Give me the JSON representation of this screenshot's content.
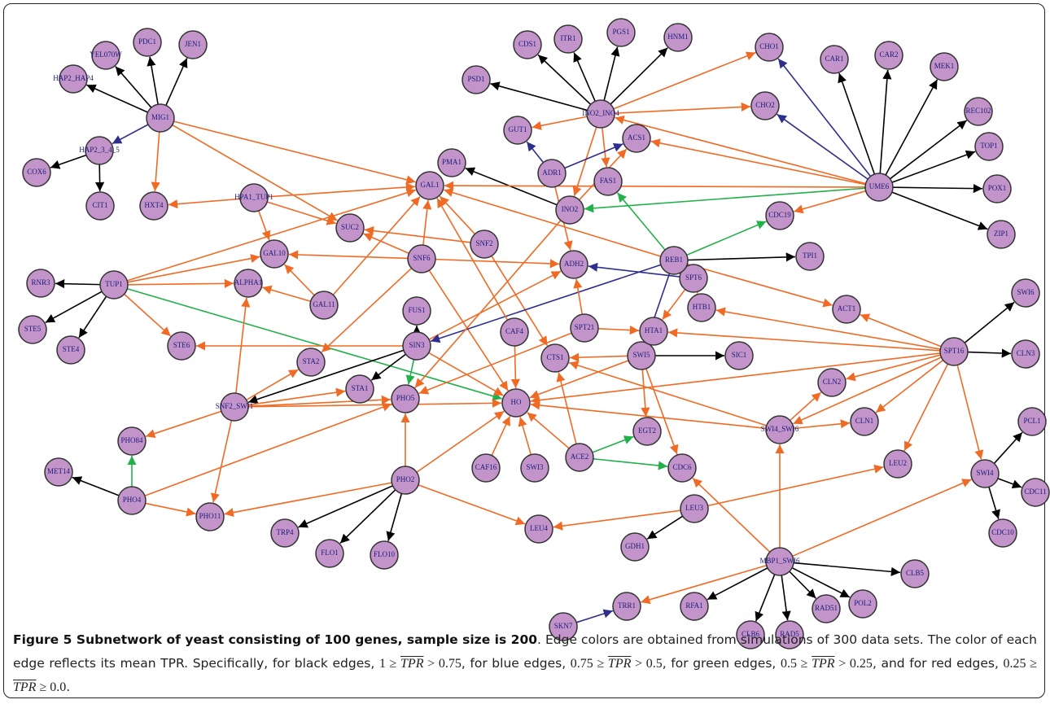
{
  "nodes": [
    {
      "label": "YEL070W"
    },
    {
      "label": "PDC1"
    },
    {
      "label": "JEN1"
    },
    {
      "label": "HAP2_HAP4"
    },
    {
      "label": "MIG1"
    },
    {
      "label": "HAP2_3_4_5"
    },
    {
      "label": "COX6"
    },
    {
      "label": "CIT1"
    },
    {
      "label": "HXT4"
    },
    {
      "label": "HPA1_TUP1"
    },
    {
      "label": "GAL1"
    },
    {
      "label": "SUC2"
    },
    {
      "label": "GAL10"
    },
    {
      "label": "SNF2"
    },
    {
      "label": "SNF6"
    },
    {
      "label": "ADH2"
    },
    {
      "label": "RNR3"
    },
    {
      "label": "TUP1"
    },
    {
      "label": "ALPHA1"
    },
    {
      "label": "GAL11"
    },
    {
      "label": "STE5"
    },
    {
      "label": "STE4"
    },
    {
      "label": "STE6"
    },
    {
      "label": "FUS1"
    },
    {
      "label": "SIN3"
    },
    {
      "label": "STA2"
    },
    {
      "label": "STA1"
    },
    {
      "label": "PHO5"
    },
    {
      "label": "CAF4"
    },
    {
      "label": "SPT21"
    },
    {
      "label": "CTS1"
    },
    {
      "label": "HO"
    },
    {
      "label": "SWI5"
    },
    {
      "label": "SIC1"
    },
    {
      "label": "HTA1"
    },
    {
      "label": "HTB1"
    },
    {
      "label": "SPT6"
    },
    {
      "label": "REB1"
    },
    {
      "label": "TPI1"
    },
    {
      "label": "ACT1"
    },
    {
      "label": "SNF2_SWI1"
    },
    {
      "label": "PHO84"
    },
    {
      "label": "MET14"
    },
    {
      "label": "PHO4"
    },
    {
      "label": "PHO11"
    },
    {
      "label": "PHO2"
    },
    {
      "label": "TRP4"
    },
    {
      "label": "FLO1"
    },
    {
      "label": "FLO10"
    },
    {
      "label": "CAF16"
    },
    {
      "label": "SWI3"
    },
    {
      "label": "ACE2"
    },
    {
      "label": "EGT2"
    },
    {
      "label": "CDC6"
    },
    {
      "label": "LEU4"
    },
    {
      "label": "LEU3"
    },
    {
      "label": "GDH1"
    },
    {
      "label": "MBP1_SWI6"
    },
    {
      "label": "CLB5"
    },
    {
      "label": "POL2"
    },
    {
      "label": "RAD51"
    },
    {
      "label": "RAD5"
    },
    {
      "label": "CLB6"
    },
    {
      "label": "RFA1"
    },
    {
      "label": "TRR1"
    },
    {
      "label": "SKN7"
    },
    {
      "label": "SWI4_SWI6"
    },
    {
      "label": "CLN2"
    },
    {
      "label": "CLN1"
    },
    {
      "label": "LEU2"
    },
    {
      "label": "SPT16"
    },
    {
      "label": "SWI6"
    },
    {
      "label": "CLN3"
    },
    {
      "label": "SWI4"
    },
    {
      "label": "PCL1"
    },
    {
      "label": "CDC11"
    },
    {
      "label": "CDC10"
    },
    {
      "label": "PSD1"
    },
    {
      "label": "CDS1"
    },
    {
      "label": "ITR1"
    },
    {
      "label": "PGS1"
    },
    {
      "label": "HNM1"
    },
    {
      "label": "INO2_INO4"
    },
    {
      "label": "GUT1"
    },
    {
      "label": "PMA1"
    },
    {
      "label": "ADR1"
    },
    {
      "label": "ACS1"
    },
    {
      "label": "FAS1"
    },
    {
      "label": "INO2"
    },
    {
      "label": "CHO1"
    },
    {
      "label": "CHO2"
    },
    {
      "label": "CAR1"
    },
    {
      "label": "CAR2"
    },
    {
      "label": "MEK1"
    },
    {
      "label": "REC102"
    },
    {
      "label": "TOP1"
    },
    {
      "label": "POX1"
    },
    {
      "label": "UME6"
    },
    {
      "label": "ZIP1"
    },
    {
      "label": "CDC19"
    }
  ],
  "caption": {
    "title": "Figure 5 Subnetwork of yeast consisting of 100 genes, sample size is 200",
    "text": [
      ". Edge colors are obtained from simulations of 300 data sets. The color of each edge reflects its mean TPR. Specifically, for black edges, ",
      ", for blue edges, ",
      ", for green edges, ",
      ", and for red edges, ",
      "."
    ],
    "inequalities": [
      {
        "left": "1 ≥ ",
        "var": "TPR",
        "right": " > 0.75"
      },
      {
        "left": "0.75 ≥ ",
        "var": "TPR",
        "right": " > 0.5"
      },
      {
        "left": "0.5 ≥ ",
        "var": "TPR",
        "right": " > 0.25"
      },
      {
        "left": "0.25 ≥ ",
        "var": "TPR",
        "right": " ≥ 0.0"
      }
    ]
  }
}
